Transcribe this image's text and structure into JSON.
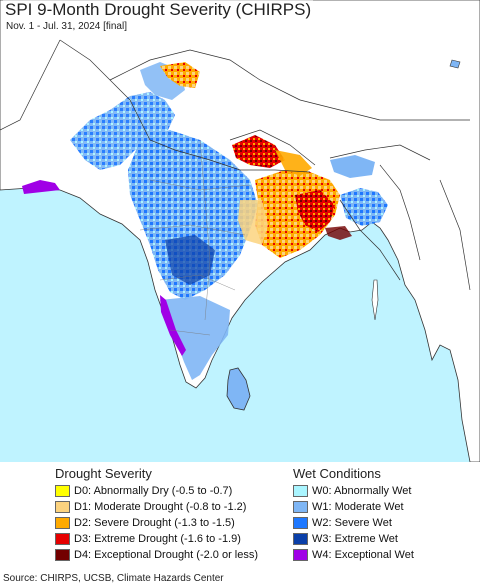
{
  "map": {
    "title": "SPI 9-Month Drought Severity (CHIRPS)",
    "subtitle": "Nov. 1 - Jul. 31, 2024 [final]",
    "colors": {
      "ocean": "#bff3ff",
      "land": "#ffffff",
      "border": "#333333"
    }
  },
  "legend": {
    "drought_heading": "Drought Severity",
    "wet_heading": "Wet Conditions",
    "drought_items": [
      {
        "label": "D0: Abnormally Dry (-0.5 to -0.7)",
        "color": "#ffff00"
      },
      {
        "label": "D1: Moderate Drought (-0.8 to -1.2)",
        "color": "#fcd37f"
      },
      {
        "label": "D2: Severe Drought (-1.3 to -1.5)",
        "color": "#ffaa00"
      },
      {
        "label": "D3: Extreme Drought (-1.6 to -1.9)",
        "color": "#e60000"
      },
      {
        "label": "D4: Exceptional Drought (-2.0 or less)",
        "color": "#730000"
      }
    ],
    "wet_items": [
      {
        "label": "W0: Abnormally Wet",
        "color": "#aaf5ff"
      },
      {
        "label": "W1: Moderate Wet",
        "color": "#7fb6f5"
      },
      {
        "label": "W2: Severe Wet",
        "color": "#1e78ff"
      },
      {
        "label": "W3: Extreme Wet",
        "color": "#0a3fa8"
      },
      {
        "label": "W4: Exceptional Wet",
        "color": "#a000e6"
      }
    ]
  },
  "source": "Source: CHIRPS, UCSB, Climate Hazards Center"
}
